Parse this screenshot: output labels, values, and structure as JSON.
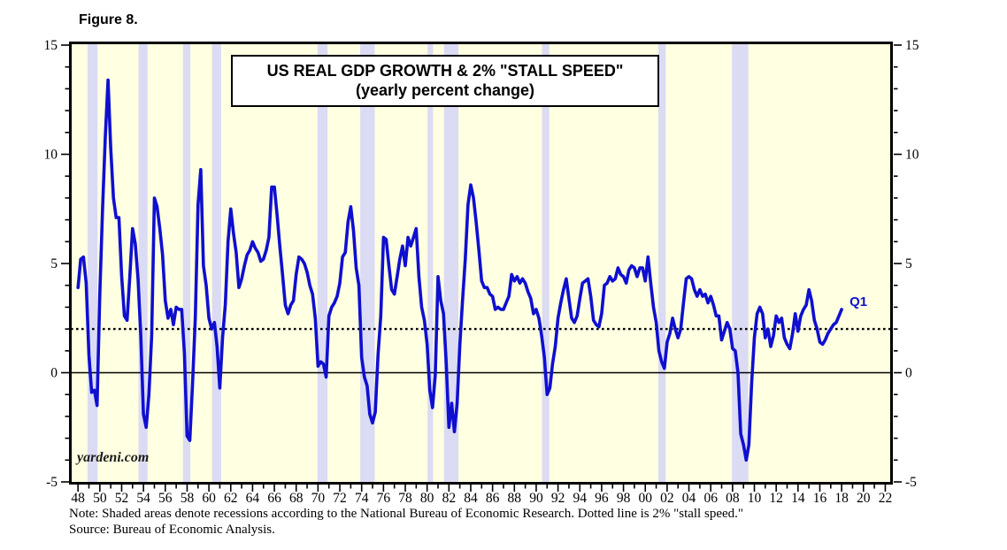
{
  "figure_label": "Figure 8.",
  "title_box": {
    "line1": "US REAL GDP GROWTH & 2% \"STALL SPEED\"",
    "line2": "(yearly percent change)"
  },
  "watermark": "yardeni.com",
  "end_label": "Q1",
  "notes": {
    "note": "Note: Shaded areas denote recessions according to the National Bureau of Economic Research. Dotted line is 2% \"stall speed.\"",
    "source": "Source: Bureau of Economic Analysis."
  },
  "colors": {
    "background": "#ffffe1",
    "recession_band": "#dbdbf4",
    "line": "#0f0fd0",
    "stall_line": "#000000",
    "zero_line": "#000000",
    "frame": "#000000",
    "tick_text": "#000000"
  },
  "chart_data": {
    "type": "line",
    "title": "US REAL GDP GROWTH & 2% \"STALL SPEED\"",
    "subtitle": "(yearly percent change)",
    "xlabel": "",
    "ylabel": "",
    "xlim": [
      1947.5,
      2022.45
    ],
    "ylim": [
      -5,
      15
    ],
    "grid": false,
    "legend": "none",
    "y_ticks": [
      -5,
      0,
      5,
      10,
      15
    ],
    "y_tick_labels": [
      "-5",
      "0",
      "5",
      "10",
      "15"
    ],
    "y_minor_step": 1,
    "x_tick_labels": [
      "48",
      "50",
      "52",
      "54",
      "56",
      "58",
      "60",
      "62",
      "64",
      "66",
      "68",
      "70",
      "72",
      "74",
      "76",
      "78",
      "80",
      "82",
      "84",
      "86",
      "88",
      "90",
      "92",
      "94",
      "96",
      "98",
      "00",
      "02",
      "04",
      "06",
      "08",
      "10",
      "12",
      "14",
      "16",
      "18",
      "20",
      "22"
    ],
    "x_tick_start_year": 1948,
    "x_tick_step_years": 2,
    "stall_speed_value": 2,
    "recessions": [
      [
        1948.87,
        1949.79
      ],
      [
        1953.54,
        1954.37
      ],
      [
        1957.62,
        1958.29
      ],
      [
        1960.29,
        1961.12
      ],
      [
        1969.95,
        1970.87
      ],
      [
        1973.87,
        1975.2
      ],
      [
        1980.04,
        1980.54
      ],
      [
        1981.54,
        1982.87
      ],
      [
        1990.54,
        1991.2
      ],
      [
        2001.2,
        2001.87
      ],
      [
        2007.95,
        2009.45
      ]
    ],
    "series": [
      {
        "name": "US Real GDP Growth (yearly percent change, quarterly observations)",
        "frequency": "quarterly",
        "start_year": 1948,
        "start_quarter": 1,
        "end_point": "2018 Q1",
        "values": [
          3.9,
          5.2,
          5.3,
          4.1,
          0.8,
          -0.9,
          -0.8,
          -1.5,
          3.6,
          7.5,
          10.8,
          13.4,
          10.3,
          8.0,
          7.1,
          7.1,
          4.4,
          2.6,
          2.4,
          4.4,
          6.6,
          5.9,
          4.3,
          1.7,
          -1.9,
          -2.5,
          -1.0,
          1.7,
          8.0,
          7.6,
          6.6,
          5.4,
          3.3,
          2.5,
          2.9,
          2.2,
          3.0,
          2.9,
          2.9,
          0.9,
          -2.9,
          -3.1,
          -0.5,
          2.5,
          7.7,
          9.3,
          4.9,
          4.0,
          2.5,
          2.0,
          2.3,
          1.2,
          -0.7,
          1.6,
          3.1,
          6.0,
          7.5,
          6.4,
          5.5,
          3.9,
          4.3,
          4.9,
          5.4,
          5.6,
          6.0,
          5.7,
          5.5,
          5.1,
          5.2,
          5.6,
          6.2,
          8.5,
          8.5,
          7.2,
          5.8,
          4.5,
          3.1,
          2.7,
          3.1,
          3.3,
          4.5,
          5.3,
          5.2,
          5.0,
          4.6,
          4.0,
          3.6,
          2.5,
          0.3,
          0.5,
          0.4,
          -0.2,
          2.6,
          3.0,
          3.2,
          3.5,
          4.1,
          5.3,
          5.5,
          6.9,
          7.6,
          6.5,
          4.8,
          4.0,
          0.7,
          -0.2,
          -0.6,
          -1.9,
          -2.3,
          -1.8,
          0.8,
          2.6,
          6.2,
          6.1,
          4.9,
          3.8,
          3.6,
          4.4,
          5.2,
          5.8,
          4.9,
          6.2,
          5.8,
          6.2,
          6.6,
          4.4,
          3.0,
          2.4,
          1.3,
          -0.8,
          -1.6,
          -0.1,
          4.4,
          3.3,
          2.7,
          0.5,
          -2.5,
          -1.4,
          -2.7,
          -1.4,
          1.3,
          3.3,
          5.2,
          7.7,
          8.6,
          8.0,
          6.9,
          5.6,
          4.2,
          3.9,
          3.9,
          3.6,
          3.5,
          2.9,
          3.0,
          2.9,
          2.9,
          3.2,
          3.5,
          4.5,
          4.2,
          4.4,
          4.1,
          4.3,
          4.1,
          3.7,
          3.4,
          2.7,
          2.9,
          2.5,
          1.7,
          0.7,
          -1.0,
          -0.7,
          0.4,
          1.2,
          2.5,
          3.2,
          3.8,
          4.3,
          3.4,
          2.5,
          2.3,
          2.6,
          3.4,
          4.1,
          4.2,
          4.3,
          3.5,
          2.4,
          2.2,
          2.1,
          2.7,
          4.0,
          4.1,
          4.4,
          4.2,
          4.3,
          4.8,
          4.5,
          4.4,
          4.1,
          4.7,
          4.9,
          4.8,
          4.4,
          4.8,
          4.8,
          4.2,
          5.3,
          4.1,
          3.0,
          2.3,
          1.0,
          0.5,
          0.2,
          1.4,
          1.8,
          2.5,
          2.0,
          1.6,
          2.0,
          3.2,
          4.3,
          4.4,
          4.3,
          3.8,
          3.5,
          3.8,
          3.5,
          3.6,
          3.2,
          3.5,
          3.1,
          2.6,
          2.6,
          1.5,
          1.9,
          2.3,
          2.0,
          1.1,
          1.0,
          0.0,
          -2.8,
          -3.3,
          -4.0,
          -3.3,
          -0.5,
          1.6,
          2.7,
          3.0,
          2.7,
          1.6,
          2.0,
          1.2,
          1.7,
          2.6,
          2.3,
          2.5,
          1.6,
          1.3,
          1.1,
          1.8,
          2.7,
          1.9,
          2.6,
          2.9,
          3.1,
          3.8,
          3.3,
          2.4,
          2.0,
          1.4,
          1.3,
          1.5,
          1.8,
          2.0,
          2.2,
          2.3,
          2.6,
          2.9
        ]
      }
    ]
  }
}
